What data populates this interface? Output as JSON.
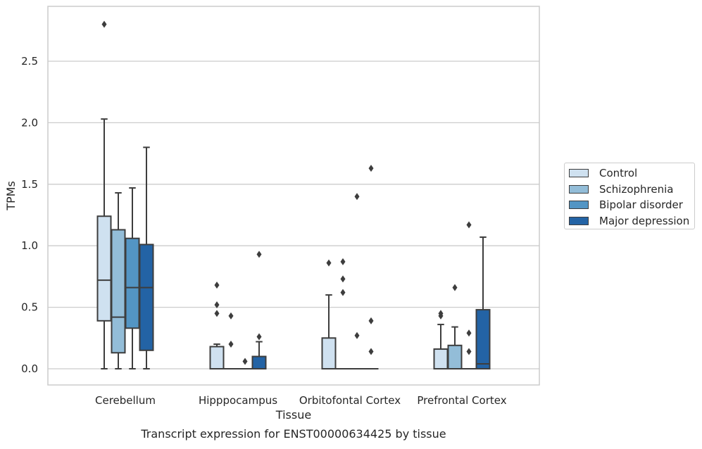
{
  "chart_data": {
    "type": "box",
    "title": "Transcript expression for ENST00000634425 by tissue",
    "xlabel": "Tissue",
    "ylabel": "TPMs",
    "ylim": [
      -0.14,
      2.9
    ],
    "yticks": [
      "0.0",
      "0.5",
      "1.0",
      "1.5",
      "2.0",
      "2.5"
    ],
    "ytick_values": [
      0.0,
      0.5,
      1.0,
      1.5,
      2.0,
      2.5
    ],
    "grid": "horizontal",
    "legend_position": "right",
    "categories": [
      "Cerebellum",
      "Hipppocampus",
      "Orbitofontal Cortex",
      "Prefrontal Cortex"
    ],
    "series": [
      {
        "name": "Control",
        "color": "#cfe1f0",
        "boxes": [
          {
            "whislo": 0.0,
            "q1": 0.39,
            "med": 0.72,
            "q3": 1.24,
            "whishi": 2.03,
            "fliers": [
              2.8
            ]
          },
          {
            "whislo": 0.0,
            "q1": 0.0,
            "med": 0.0,
            "q3": 0.18,
            "whishi": 0.2,
            "fliers": [
              0.68,
              0.52,
              0.45
            ]
          },
          {
            "whislo": 0.0,
            "q1": 0.0,
            "med": 0.0,
            "q3": 0.25,
            "whishi": 0.6,
            "fliers": [
              0.86
            ]
          },
          {
            "whislo": 0.0,
            "q1": 0.0,
            "med": 0.0,
            "q3": 0.16,
            "whishi": 0.36,
            "fliers": [
              0.45,
              0.43
            ]
          }
        ]
      },
      {
        "name": "Schizophrenia",
        "color": "#93bdd8",
        "boxes": [
          {
            "whislo": 0.0,
            "q1": 0.13,
            "med": 0.42,
            "q3": 1.13,
            "whishi": 1.43,
            "fliers": []
          },
          {
            "whislo": 0.0,
            "q1": 0.0,
            "med": 0.0,
            "q3": 0.0,
            "whishi": 0.0,
            "fliers": [
              0.43,
              0.2
            ]
          },
          {
            "whislo": 0.0,
            "q1": 0.0,
            "med": 0.0,
            "q3": 0.0,
            "whishi": 0.0,
            "fliers": [
              0.87,
              0.73,
              0.62
            ]
          },
          {
            "whislo": 0.0,
            "q1": 0.0,
            "med": 0.0,
            "q3": 0.19,
            "whishi": 0.34,
            "fliers": [
              0.66
            ]
          }
        ]
      },
      {
        "name": "Bipolar disorder",
        "color": "#5395c4",
        "boxes": [
          {
            "whislo": 0.0,
            "q1": 0.33,
            "med": 0.66,
            "q3": 1.06,
            "whishi": 1.47,
            "fliers": []
          },
          {
            "whislo": 0.0,
            "q1": 0.0,
            "med": 0.0,
            "q3": 0.0,
            "whishi": 0.0,
            "fliers": [
              0.06
            ]
          },
          {
            "whislo": 0.0,
            "q1": 0.0,
            "med": 0.0,
            "q3": 0.0,
            "whishi": 0.0,
            "fliers": [
              1.4,
              0.27
            ]
          },
          {
            "whislo": 0.0,
            "q1": 0.0,
            "med": 0.0,
            "q3": 0.0,
            "whishi": 0.0,
            "fliers": [
              1.17,
              0.29,
              0.14
            ]
          }
        ]
      },
      {
        "name": "Major depression",
        "color": "#2363a5",
        "boxes": [
          {
            "whislo": 0.0,
            "q1": 0.15,
            "med": 0.66,
            "q3": 1.01,
            "whishi": 1.8,
            "fliers": []
          },
          {
            "whislo": 0.0,
            "q1": 0.0,
            "med": 0.0,
            "q3": 0.1,
            "whishi": 0.22,
            "fliers": [
              0.93,
              0.26
            ]
          },
          {
            "whislo": 0.0,
            "q1": 0.0,
            "med": 0.0,
            "q3": 0.0,
            "whishi": 0.0,
            "fliers": [
              1.63,
              0.39,
              0.14
            ]
          },
          {
            "whislo": 0.0,
            "q1": 0.0,
            "med": 0.04,
            "q3": 0.48,
            "whishi": 1.07,
            "fliers": []
          }
        ]
      }
    ]
  }
}
